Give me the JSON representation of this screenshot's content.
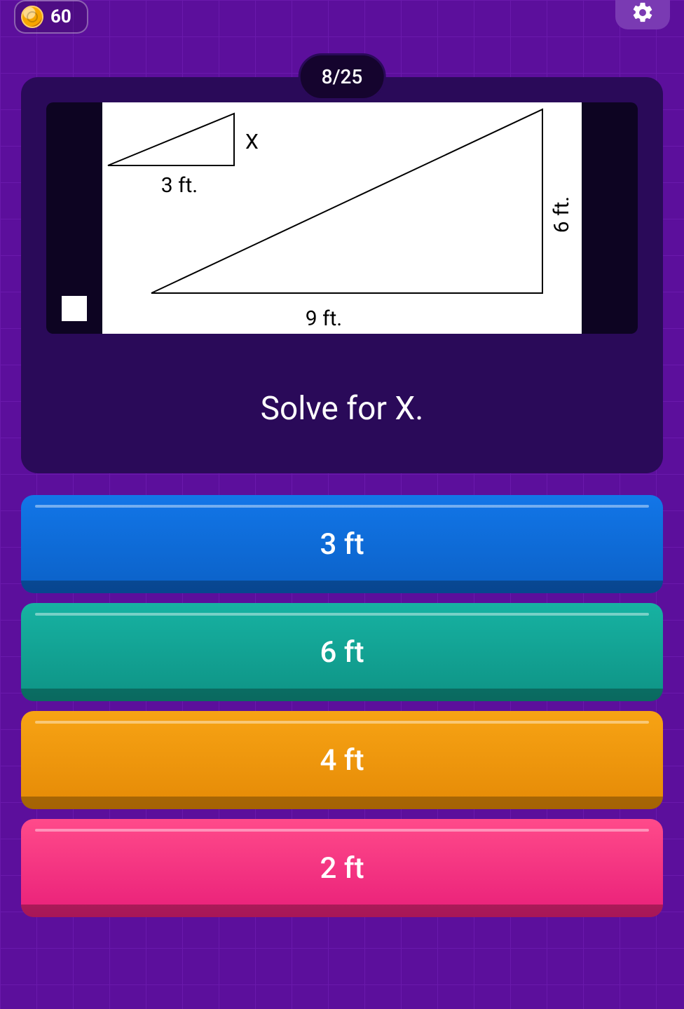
{
  "header": {
    "score": "60"
  },
  "progress": {
    "current": 8,
    "total": 25,
    "text": "8/25"
  },
  "question": {
    "prompt": "Solve for X.",
    "figure": {
      "type": "similar-triangles",
      "background_color": "#ffffff",
      "stroke_color": "#000000",
      "stroke_width": 2,
      "small_triangle": {
        "points": [
          [
            8,
            90
          ],
          [
            188,
            16
          ],
          [
            188,
            90
          ]
        ],
        "base_label": "3 ft.",
        "side_label": "X"
      },
      "large_triangle": {
        "points": [
          [
            70,
            272
          ],
          [
            628,
            10
          ],
          [
            628,
            272
          ]
        ],
        "base_label": "9 ft.",
        "side_label": "6 ft."
      },
      "label_fontsize": 30
    }
  },
  "answers": [
    {
      "label": "3 ft",
      "colors": {
        "top": "#1276e8",
        "bottom": "#0b61c7"
      }
    },
    {
      "label": "6 ft",
      "colors": {
        "top": "#17b2a2",
        "bottom": "#0e9385"
      }
    },
    {
      "label": "4 ft",
      "colors": {
        "top": "#f7a314",
        "bottom": "#e58a06"
      }
    },
    {
      "label": "2 ft",
      "colors": {
        "top": "#ff4a8a",
        "bottom": "#e91f79"
      }
    }
  ]
}
